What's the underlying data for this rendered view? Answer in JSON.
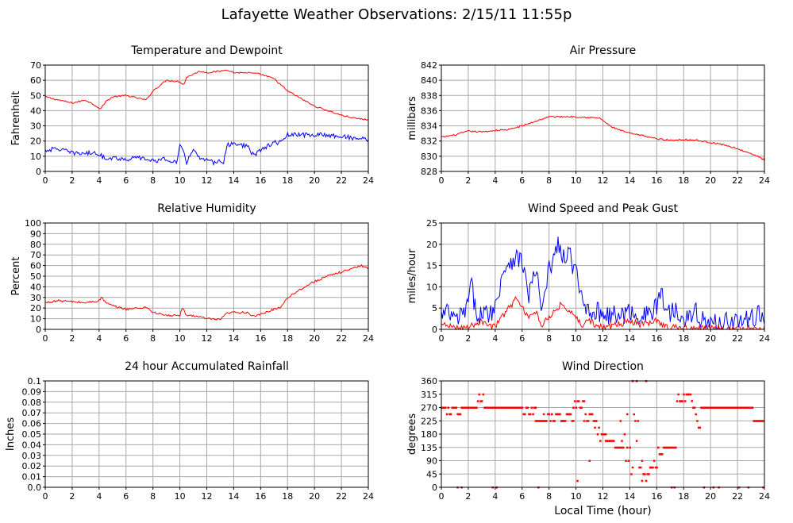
{
  "title": "Lafayette Weather Observations: 2/15/11 11:55p",
  "chart_data": [
    {
      "id": "temp",
      "type": "line",
      "title": "Temperature and Dewpoint",
      "xlabel": "",
      "ylabel": "Fahrenheit",
      "xlim": [
        0,
        24
      ],
      "ylim": [
        0,
        70
      ],
      "xticks": [
        0,
        2,
        4,
        6,
        8,
        10,
        12,
        14,
        16,
        18,
        20,
        22,
        24
      ],
      "yticks": [
        0,
        10,
        20,
        30,
        40,
        50,
        60,
        70
      ],
      "ytick_labels": [
        "0",
        "10",
        "20",
        "30",
        "40",
        "50",
        "60",
        "70"
      ],
      "grid": true,
      "series": [
        {
          "color": "#ff0000",
          "jitter": 0.5,
          "x": [
            0,
            1,
            2,
            3,
            3.8,
            4.1,
            4.5,
            5,
            6,
            7,
            7.5,
            8,
            9,
            10,
            10.3,
            10.5,
            11,
            11.5,
            12,
            13,
            13.5,
            14,
            15,
            16,
            17,
            18,
            19,
            20,
            21,
            22,
            23,
            24
          ],
          "y": [
            49,
            47,
            45,
            47,
            43,
            41,
            46,
            49,
            50,
            48,
            47,
            53,
            60,
            59,
            57,
            62,
            64,
            66,
            65,
            66,
            67,
            65,
            65,
            64,
            61,
            53,
            48,
            43,
            40,
            37,
            35,
            34
          ]
        },
        {
          "color": "#0000ff",
          "jitter": 1.5,
          "x": [
            0,
            1,
            2,
            3,
            4,
            4.3,
            5,
            6,
            7,
            8,
            9,
            9.8,
            10,
            10.2,
            10.5,
            11,
            11.5,
            12,
            12.5,
            13,
            13.2,
            13.5,
            14,
            14.5,
            15,
            15.5,
            16,
            17,
            17.5,
            18,
            19,
            20,
            21,
            22,
            23,
            24
          ],
          "y": [
            14,
            15,
            12,
            12,
            12,
            9,
            9,
            8,
            9,
            7,
            8,
            6,
            17,
            14,
            6,
            15,
            8,
            7,
            6,
            7,
            4,
            17,
            19,
            17,
            17,
            10,
            14,
            19,
            19,
            24,
            24,
            24,
            24,
            23,
            22,
            21
          ]
        }
      ]
    },
    {
      "id": "pressure",
      "type": "line",
      "title": "Air Pressure",
      "xlabel": "",
      "ylabel": "millibars",
      "xlim": [
        0,
        24
      ],
      "ylim": [
        828,
        842
      ],
      "xticks": [
        0,
        2,
        4,
        6,
        8,
        10,
        12,
        14,
        16,
        18,
        20,
        22,
        24
      ],
      "yticks": [
        828,
        830,
        832,
        834,
        836,
        838,
        840,
        842
      ],
      "ytick_labels": [
        "828",
        "830",
        "832",
        "834",
        "836",
        "838",
        "840",
        "842"
      ],
      "grid": true,
      "series": [
        {
          "color": "#ff0000",
          "jitter": 0.1,
          "x": [
            0,
            1,
            2,
            3,
            4,
            5,
            6,
            7,
            8,
            9,
            10,
            11,
            11.8,
            12.5,
            13,
            14,
            15,
            16,
            17,
            18,
            19,
            20,
            21,
            22,
            23,
            23.5,
            24
          ],
          "y": [
            832.5,
            832.8,
            833.3,
            833.2,
            833.4,
            833.5,
            834.0,
            834.6,
            835.2,
            835.2,
            835.2,
            835.1,
            835.0,
            834.0,
            833.6,
            833.0,
            832.7,
            832.3,
            832.1,
            832.2,
            832.1,
            831.8,
            831.5,
            831.0,
            830.3,
            830.0,
            829.5
          ]
        }
      ]
    },
    {
      "id": "humidity",
      "type": "line",
      "title": "Relative Humidity",
      "xlabel": "",
      "ylabel": "Percent",
      "xlim": [
        0,
        24
      ],
      "ylim": [
        0,
        100
      ],
      "xticks": [
        0,
        2,
        4,
        6,
        8,
        10,
        12,
        14,
        16,
        18,
        20,
        22,
        24
      ],
      "yticks": [
        0,
        10,
        20,
        30,
        40,
        50,
        60,
        70,
        80,
        90,
        100
      ],
      "ytick_labels": [
        "0",
        "10",
        "20",
        "30",
        "40",
        "50",
        "60",
        "70",
        "80",
        "90",
        "100"
      ],
      "grid": true,
      "series": [
        {
          "color": "#ff0000",
          "jitter": 1.0,
          "x": [
            0,
            1,
            2,
            3,
            4,
            4.2,
            4.5,
            5,
            6,
            7,
            7.5,
            8,
            9,
            10,
            10.2,
            10.5,
            11,
            12,
            13,
            13.5,
            14,
            15,
            15.5,
            16,
            17,
            17.5,
            18,
            19,
            20,
            21,
            22,
            23,
            23.5,
            24
          ],
          "y": [
            25,
            27,
            26,
            25,
            27,
            30,
            25,
            22,
            19,
            20,
            21,
            16,
            13,
            13,
            20,
            13,
            13,
            10,
            9,
            15,
            16,
            16,
            12,
            14,
            19,
            21,
            30,
            38,
            45,
            50,
            54,
            58,
            60,
            57
          ]
        }
      ]
    },
    {
      "id": "wind",
      "type": "line",
      "title": "Wind Speed and Peak Gust",
      "xlabel": "",
      "ylabel": "miles/hour",
      "xlim": [
        0,
        24
      ],
      "ylim": [
        0,
        25
      ],
      "xticks": [
        0,
        2,
        4,
        6,
        8,
        10,
        12,
        14,
        16,
        18,
        20,
        22,
        24
      ],
      "yticks": [
        0,
        5,
        10,
        15,
        20,
        25
      ],
      "ytick_labels": [
        "0",
        "5",
        "10",
        "15",
        "20",
        "25"
      ],
      "grid": true,
      "series": [
        {
          "color": "#0000ff",
          "jitter": 2.5,
          "min": 0,
          "x": [
            0,
            0.5,
            1,
            1.5,
            2,
            2.2,
            2.5,
            3,
            3.5,
            4,
            4.5,
            5,
            5.5,
            6,
            6.5,
            7,
            7.5,
            8,
            8.5,
            8.7,
            9,
            9.5,
            10,
            10.5,
            11,
            11.5,
            12,
            13,
            14,
            15,
            16,
            16.3,
            16.5,
            17,
            17.5,
            18,
            18.5,
            19,
            19.5,
            20,
            21,
            22,
            23,
            23.5,
            24
          ],
          "y": [
            3,
            4,
            2,
            3,
            6,
            11,
            5,
            3,
            4,
            5,
            13,
            16,
            17,
            16,
            8,
            14,
            4,
            14,
            18,
            21,
            16,
            18,
            13,
            6,
            5,
            4,
            4,
            3,
            4,
            3,
            5,
            10,
            6,
            4,
            5,
            3,
            3,
            4,
            2,
            1,
            2,
            2,
            2,
            4,
            2
          ]
        },
        {
          "color": "#ff0000",
          "jitter": 0.8,
          "min": 0,
          "x": [
            0,
            1,
            2,
            3,
            4,
            4.5,
            5,
            5.5,
            6,
            6.5,
            7,
            7.5,
            8,
            8.5,
            9,
            9.5,
            10,
            10.5,
            11,
            11.5,
            12,
            13,
            14,
            15,
            16,
            16.5,
            17,
            18,
            19,
            20,
            21,
            22,
            23,
            24
          ],
          "y": [
            1,
            0.5,
            0.5,
            2,
            0.5,
            3,
            5,
            7,
            5,
            3,
            4,
            1,
            3,
            5,
            6,
            4,
            3,
            1,
            2,
            1,
            0.5,
            1,
            2,
            1,
            2,
            1,
            0.3,
            0.3,
            0,
            0.2,
            0.2,
            0,
            0.2,
            0
          ]
        }
      ]
    },
    {
      "id": "rain",
      "type": "line",
      "title": "24 hour Accumulated Rainfall",
      "xlabel": "",
      "ylabel": "Inches",
      "xlim": [
        0,
        24
      ],
      "ylim": [
        0,
        0.1
      ],
      "xticks": [
        0,
        2,
        4,
        6,
        8,
        10,
        12,
        14,
        16,
        18,
        20,
        22,
        24
      ],
      "yticks": [
        0,
        0.01,
        0.02,
        0.03,
        0.04,
        0.05,
        0.06,
        0.07,
        0.08,
        0.09,
        0.1
      ],
      "ytick_labels": [
        "0.0",
        "0.01",
        "0.02",
        "0.03",
        "0.04",
        "0.05",
        "0.06",
        "0.07",
        "0.08",
        "0.09",
        "0.1"
      ],
      "grid": true,
      "series": [
        {
          "color": "#ff0000",
          "jitter": 0,
          "x": [
            0,
            24
          ],
          "y": [
            0,
            0
          ]
        }
      ]
    },
    {
      "id": "direction",
      "type": "scatter",
      "title": "Wind Direction",
      "xlabel": "Local Time (hour)",
      "ylabel": "degrees",
      "xlim": [
        0,
        24
      ],
      "ylim": [
        0,
        360
      ],
      "xticks": [
        0,
        2,
        4,
        6,
        8,
        10,
        12,
        14,
        16,
        18,
        20,
        22,
        24
      ],
      "yticks": [
        0,
        45,
        90,
        135,
        180,
        225,
        270,
        315,
        360
      ],
      "ytick_labels": [
        "0",
        "45",
        "90",
        "135",
        "180",
        "225",
        "270",
        "315",
        "360"
      ],
      "grid": true,
      "series": [
        {
          "color": "#ff0000",
          "segments": [
            [
              0,
              1.5,
              248,
              270,
              "s",
              0
            ],
            [
              1.5,
              2.7,
              270,
              270,
              "s",
              0
            ],
            [
              2.7,
              3.2,
              315,
              292,
              "s",
              0
            ],
            [
              3.2,
              5.5,
              270,
              270,
              "s",
              0
            ],
            [
              5.5,
              7.0,
              248,
              270,
              "s",
              0
            ],
            [
              7.0,
              7.6,
              225,
              225,
              "s",
              0
            ],
            [
              7.6,
              9.8,
              248,
              225,
              "s",
              0
            ],
            [
              9.8,
              10.6,
              292,
              270,
              "s",
              0
            ],
            [
              10.6,
              11.4,
              225,
              248,
              "s",
              0
            ],
            [
              11.4,
              12.2,
              202,
              180,
              "d",
              1
            ],
            [
              12.2,
              13.4,
              158,
              135,
              "d",
              0
            ],
            [
              13.4,
              14.2,
              180,
              45,
              "d",
              2
            ],
            [
              14.2,
              14.9,
              315,
              22,
              "d",
              3
            ],
            [
              14.9,
              15.6,
              22,
              45,
              "d",
              1
            ],
            [
              15.6,
              16.5,
              90,
              112,
              "d",
              1
            ],
            [
              16.5,
              17.5,
              135,
              135,
              "s",
              0
            ],
            [
              17.5,
              18.5,
              292,
              315,
              "s",
              0
            ],
            [
              18.5,
              19.3,
              315,
              180,
              "d",
              0
            ],
            [
              19.3,
              21.0,
              270,
              270,
              "s",
              0
            ],
            [
              21.0,
              23.2,
              270,
              270,
              "s",
              0
            ],
            [
              23.2,
              24.0,
              225,
              225,
              "s",
              0
            ]
          ],
          "extra": [
            [
              1.2,
              0
            ],
            [
              1.5,
              0
            ],
            [
              3.8,
              0
            ],
            [
              4.1,
              0
            ],
            [
              7.2,
              0
            ],
            [
              9.0,
              225
            ],
            [
              10.1,
              22
            ],
            [
              11.0,
              90
            ],
            [
              13.3,
              225
            ],
            [
              13.8,
              248
            ],
            [
              14.5,
              360
            ],
            [
              15.2,
              360
            ],
            [
              17.1,
              0
            ],
            [
              17.3,
              0
            ],
            [
              19.5,
              0
            ],
            [
              20.2,
              0
            ],
            [
              20.6,
              0
            ],
            [
              22.1,
              0
            ],
            [
              22.8,
              0
            ],
            [
              23.9,
              0
            ]
          ]
        }
      ]
    }
  ]
}
